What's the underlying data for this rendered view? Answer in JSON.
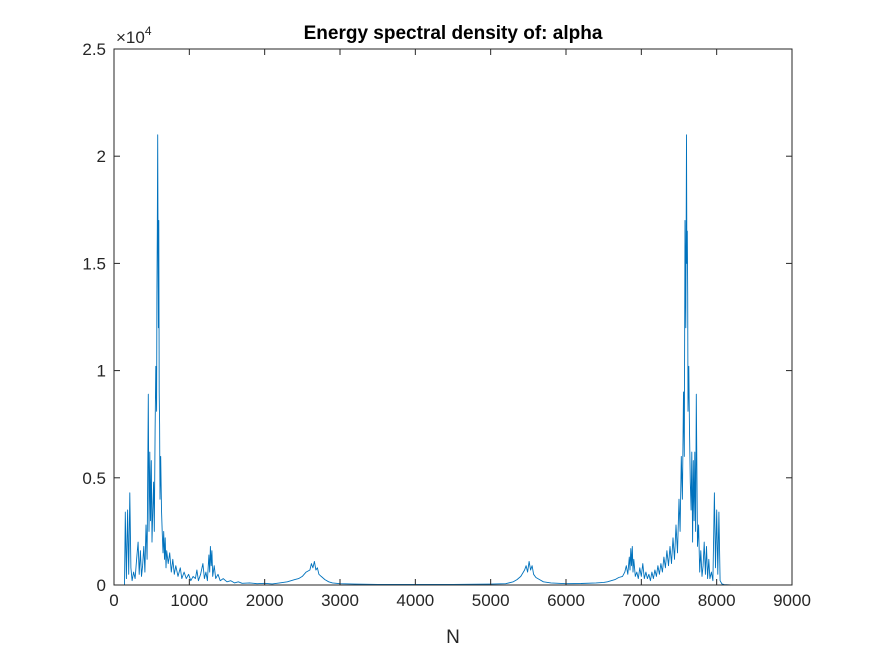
{
  "chart_data": {
    "type": "line",
    "title": "Energy spectral density of: alpha",
    "xlabel": "N",
    "ylabel": "",
    "xlim": [
      0,
      9000
    ],
    "ylim": [
      0,
      25000
    ],
    "x_ticks": [
      0,
      1000,
      2000,
      3000,
      4000,
      5000,
      6000,
      7000,
      8000,
      9000
    ],
    "x_tick_labels": [
      "0",
      "1000",
      "2000",
      "3000",
      "4000",
      "5000",
      "6000",
      "7000",
      "8000",
      "9000"
    ],
    "y_ticks": [
      0,
      5000,
      10000,
      15000,
      20000,
      25000
    ],
    "y_tick_labels": [
      "0",
      "0.5",
      "1",
      "1.5",
      "2",
      "2.5"
    ],
    "y_exponent_base": "×10",
    "y_exponent_power": "4",
    "grid": false,
    "line_color": "#0072BD",
    "series": [
      {
        "values_xy": [
          [
            140,
            0
          ],
          [
            150,
            3400
          ],
          [
            165,
            300
          ],
          [
            180,
            3500
          ],
          [
            195,
            500
          ],
          [
            210,
            4300
          ],
          [
            225,
            800
          ],
          [
            240,
            200
          ],
          [
            260,
            600
          ],
          [
            280,
            300
          ],
          [
            300,
            1200
          ],
          [
            320,
            2000
          ],
          [
            335,
            500
          ],
          [
            350,
            1600
          ],
          [
            365,
            400
          ],
          [
            380,
            900
          ],
          [
            395,
            1800
          ],
          [
            410,
            600
          ],
          [
            425,
            2800
          ],
          [
            440,
            1200
          ],
          [
            455,
            8900
          ],
          [
            465,
            2500
          ],
          [
            475,
            6200
          ],
          [
            485,
            3000
          ],
          [
            495,
            5800
          ],
          [
            505,
            2000
          ],
          [
            515,
            3500
          ],
          [
            525,
            4800
          ],
          [
            535,
            2500
          ],
          [
            545,
            7200
          ],
          [
            555,
            10200
          ],
          [
            565,
            8100
          ],
          [
            570,
            13500
          ],
          [
            575,
            16500
          ],
          [
            580,
            21000
          ],
          [
            585,
            15200
          ],
          [
            590,
            12000
          ],
          [
            595,
            17000
          ],
          [
            600,
            9000
          ],
          [
            605,
            7500
          ],
          [
            610,
            4000
          ],
          [
            620,
            6000
          ],
          [
            630,
            3500
          ],
          [
            640,
            2500
          ],
          [
            650,
            1500
          ],
          [
            660,
            2500
          ],
          [
            670,
            1200
          ],
          [
            680,
            2200
          ],
          [
            690,
            800
          ],
          [
            700,
            1600
          ],
          [
            720,
            1000
          ],
          [
            740,
            1500
          ],
          [
            760,
            600
          ],
          [
            780,
            1200
          ],
          [
            800,
            500
          ],
          [
            820,
            900
          ],
          [
            850,
            400
          ],
          [
            880,
            800
          ],
          [
            900,
            300
          ],
          [
            930,
            600
          ],
          [
            960,
            300
          ],
          [
            990,
            500
          ],
          [
            1020,
            200
          ],
          [
            1050,
            400
          ],
          [
            1080,
            300
          ],
          [
            1100,
            700
          ],
          [
            1120,
            200
          ],
          [
            1150,
            500
          ],
          [
            1180,
            1000
          ],
          [
            1200,
            300
          ],
          [
            1220,
            600
          ],
          [
            1240,
            200
          ],
          [
            1260,
            1400
          ],
          [
            1270,
            600
          ],
          [
            1280,
            1800
          ],
          [
            1290,
            900
          ],
          [
            1300,
            1600
          ],
          [
            1310,
            400
          ],
          [
            1330,
            900
          ],
          [
            1350,
            300
          ],
          [
            1380,
            500
          ],
          [
            1410,
            200
          ],
          [
            1450,
            300
          ],
          [
            1500,
            150
          ],
          [
            1550,
            200
          ],
          [
            1600,
            100
          ],
          [
            1650,
            150
          ],
          [
            1700,
            80
          ],
          [
            1800,
            100
          ],
          [
            1900,
            60
          ],
          [
            2000,
            80
          ],
          [
            2100,
            50
          ],
          [
            2200,
            100
          ],
          [
            2300,
            150
          ],
          [
            2400,
            250
          ],
          [
            2450,
            300
          ],
          [
            2500,
            400
          ],
          [
            2550,
            600
          ],
          [
            2600,
            700
          ],
          [
            2620,
            1000
          ],
          [
            2640,
            800
          ],
          [
            2660,
            1100
          ],
          [
            2680,
            700
          ],
          [
            2700,
            800
          ],
          [
            2720,
            500
          ],
          [
            2750,
            400
          ],
          [
            2800,
            250
          ],
          [
            2850,
            150
          ],
          [
            2900,
            100
          ],
          [
            3000,
            60
          ],
          [
            3200,
            40
          ],
          [
            3500,
            30
          ],
          [
            4000,
            30
          ],
          [
            4500,
            30
          ],
          [
            5000,
            40
          ],
          [
            5200,
            60
          ],
          [
            5300,
            150
          ],
          [
            5350,
            250
          ],
          [
            5400,
            400
          ],
          [
            5450,
            700
          ],
          [
            5470,
            900
          ],
          [
            5490,
            600
          ],
          [
            5510,
            1100
          ],
          [
            5530,
            700
          ],
          [
            5550,
            900
          ],
          [
            5570,
            500
          ],
          [
            5600,
            350
          ],
          [
            5650,
            250
          ],
          [
            5700,
            150
          ],
          [
            5800,
            100
          ],
          [
            6000,
            60
          ],
          [
            6200,
            70
          ],
          [
            6400,
            100
          ],
          [
            6500,
            120
          ],
          [
            6550,
            150
          ],
          [
            6600,
            200
          ],
          [
            6650,
            250
          ],
          [
            6700,
            350
          ],
          [
            6750,
            400
          ],
          [
            6780,
            600
          ],
          [
            6800,
            900
          ],
          [
            6820,
            500
          ],
          [
            6840,
            1300
          ],
          [
            6850,
            700
          ],
          [
            6860,
            1700
          ],
          [
            6870,
            900
          ],
          [
            6880,
            1800
          ],
          [
            6890,
            600
          ],
          [
            6900,
            1200
          ],
          [
            6920,
            400
          ],
          [
            6940,
            600
          ],
          [
            6960,
            300
          ],
          [
            6980,
            800
          ],
          [
            7000,
            400
          ],
          [
            7020,
            1000
          ],
          [
            7040,
            300
          ],
          [
            7060,
            600
          ],
          [
            7080,
            300
          ],
          [
            7100,
            500
          ],
          [
            7120,
            200
          ],
          [
            7140,
            600
          ],
          [
            7160,
            300
          ],
          [
            7180,
            700
          ],
          [
            7200,
            400
          ],
          [
            7220,
            900
          ],
          [
            7240,
            500
          ],
          [
            7260,
            1000
          ],
          [
            7280,
            600
          ],
          [
            7300,
            1300
          ],
          [
            7320,
            800
          ],
          [
            7340,
            1600
          ],
          [
            7360,
            900
          ],
          [
            7380,
            1800
          ],
          [
            7400,
            1000
          ],
          [
            7420,
            2200
          ],
          [
            7440,
            1200
          ],
          [
            7460,
            2800
          ],
          [
            7480,
            1500
          ],
          [
            7500,
            4000
          ],
          [
            7515,
            2500
          ],
          [
            7530,
            6000
          ],
          [
            7545,
            4000
          ],
          [
            7560,
            9000
          ],
          [
            7570,
            6000
          ],
          [
            7580,
            17000
          ],
          [
            7590,
            12000
          ],
          [
            7600,
            21000
          ],
          [
            7605,
            15000
          ],
          [
            7610,
            16500
          ],
          [
            7615,
            13500
          ],
          [
            7620,
            8100
          ],
          [
            7630,
            10200
          ],
          [
            7640,
            7200
          ],
          [
            7650,
            4800
          ],
          [
            7660,
            3500
          ],
          [
            7670,
            6200
          ],
          [
            7680,
            2000
          ],
          [
            7690,
            5800
          ],
          [
            7700,
            3000
          ],
          [
            7710,
            6200
          ],
          [
            7720,
            2500
          ],
          [
            7730,
            8900
          ],
          [
            7745,
            1800
          ],
          [
            7760,
            2800
          ],
          [
            7775,
            600
          ],
          [
            7790,
            1600
          ],
          [
            7805,
            400
          ],
          [
            7820,
            900
          ],
          [
            7835,
            2000
          ],
          [
            7850,
            500
          ],
          [
            7865,
            1800
          ],
          [
            7880,
            300
          ],
          [
            7895,
            1200
          ],
          [
            7910,
            300
          ],
          [
            7930,
            600
          ],
          [
            7950,
            200
          ],
          [
            7970,
            4300
          ],
          [
            7985,
            800
          ],
          [
            8000,
            3500
          ],
          [
            8015,
            500
          ],
          [
            8030,
            3400
          ],
          [
            8045,
            200
          ],
          [
            8070,
            50
          ],
          [
            8100,
            20
          ],
          [
            8191,
            0
          ]
        ]
      }
    ]
  }
}
